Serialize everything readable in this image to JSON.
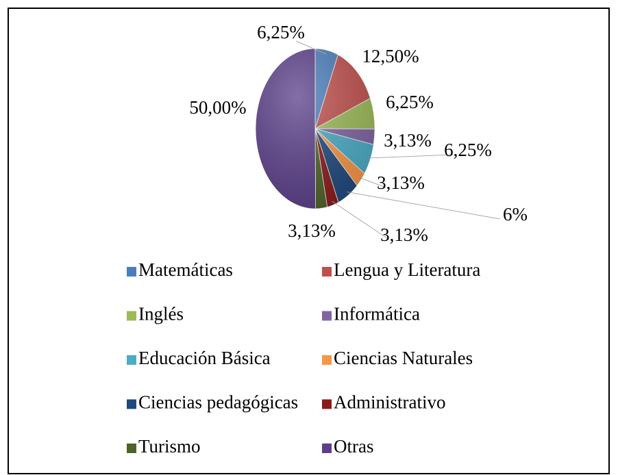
{
  "chart_data": {
    "type": "pie",
    "categories": [
      "Matemáticas",
      "Lengua y Literatura",
      "Inglés",
      "Informática",
      "Educación Básica",
      "Ciencias Naturales",
      "Ciencias pedagógicas",
      "Administrativo",
      "Turismo",
      "Otras"
    ],
    "values": [
      6.25,
      12.5,
      6.25,
      3.13,
      6.25,
      3.13,
      6,
      3.13,
      3.13,
      50
    ],
    "value_labels": [
      "6,25%",
      "12,50%",
      "6,25%",
      "3,13%",
      "6,25%",
      "3,13%",
      "6%",
      "3,13%",
      "3,13%",
      "50,00%"
    ],
    "colors": [
      "#4a7ebb",
      "#c0504d",
      "#9bbb59",
      "#8064a2",
      "#4bacc6",
      "#f79646",
      "#1f497d",
      "#8b1a1a",
      "#4f6228",
      "#5b3f8a"
    ],
    "legend": "bottom"
  }
}
